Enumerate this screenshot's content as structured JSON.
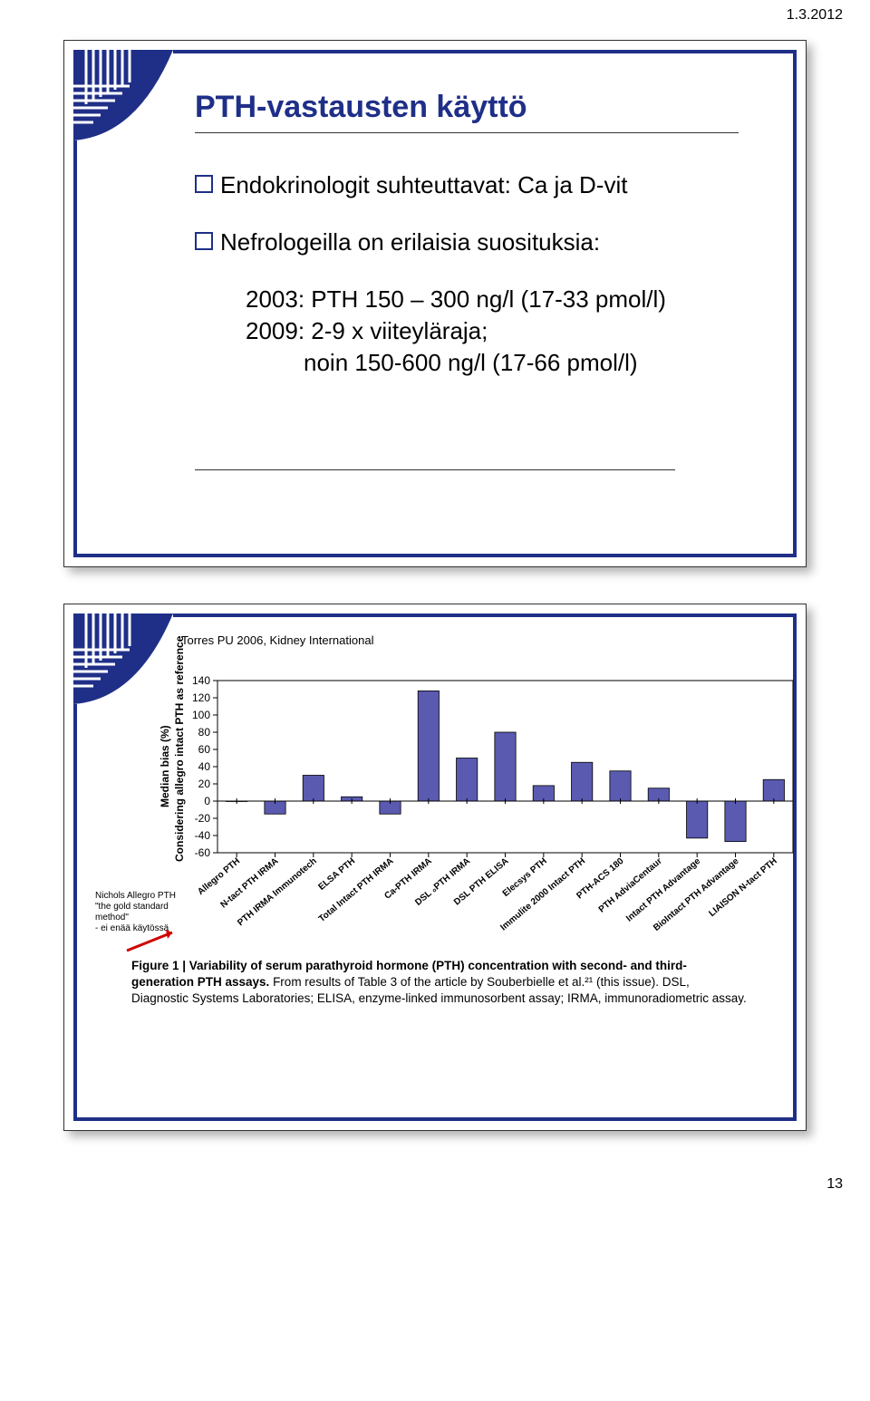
{
  "page": {
    "date": "1.3.2012",
    "number": "13"
  },
  "slide1": {
    "title": "PTH-vastausten käyttö",
    "bullet1": "Endokrinologit suhteuttavat: Ca ja D-vit",
    "bullet2": "Nefrologeilla on erilaisia suosituksia:",
    "sub1": "2003: PTH 150 – 300 ng/l (17-33 pmol/l)",
    "sub2": "2009: 2-9 x viiteyläraja;",
    "sub3": "noin 150-600 ng/l (17-66 pmol/l)"
  },
  "slide2": {
    "citation": "Torres PU 2006, Kidney International",
    "nichols": {
      "l1": "Nichols Allegro PTH",
      "l2": "\"the gold standard method\"",
      "l3": "- ei enää käytössä"
    },
    "caption_bold": "Figure 1 | Variability of serum parathyroid hormone (PTH) concentration with second- and third-generation PTH assays.",
    "caption_rest": " From results of Table 3 of the article by Souberbielle et al.²¹ (this issue). DSL, Diagnostic Systems Laboratories; ELISA, enzyme-linked immunosorbent assay; IRMA, immunoradiometric assay.",
    "chart": {
      "ylabel1": "Median bias (%)",
      "ylabel2": "Considering allegro intact PTH as reference",
      "ylim": [
        -60,
        140
      ],
      "yticks": [
        -60,
        -40,
        -20,
        0,
        20,
        40,
        60,
        80,
        100,
        120,
        140
      ],
      "bar_color": "#5a5ab0",
      "bar_border": "#000000",
      "categories": [
        "Allegro PTH",
        "N-tact PTH IRMA",
        "PTH IRMA Immunotech",
        "ELSA PTH",
        "Total Intact PTH IRMA",
        "Ca-PTH IRMA",
        "DSL ₀PTH IRMA",
        "DSL PTH ELISA",
        "Elecsys PTH",
        "Immulite 2000 Intact PTH",
        "PTH-ACS 180",
        "PTH AdviaCentaur",
        "Intact PTH Advantage",
        "BioIntact PTH Advantage",
        "LIAISON N-tact PTH"
      ],
      "values": [
        0,
        -15,
        30,
        5,
        -15,
        128,
        50,
        80,
        18,
        45,
        35,
        15,
        -43,
        -47,
        25
      ]
    }
  }
}
